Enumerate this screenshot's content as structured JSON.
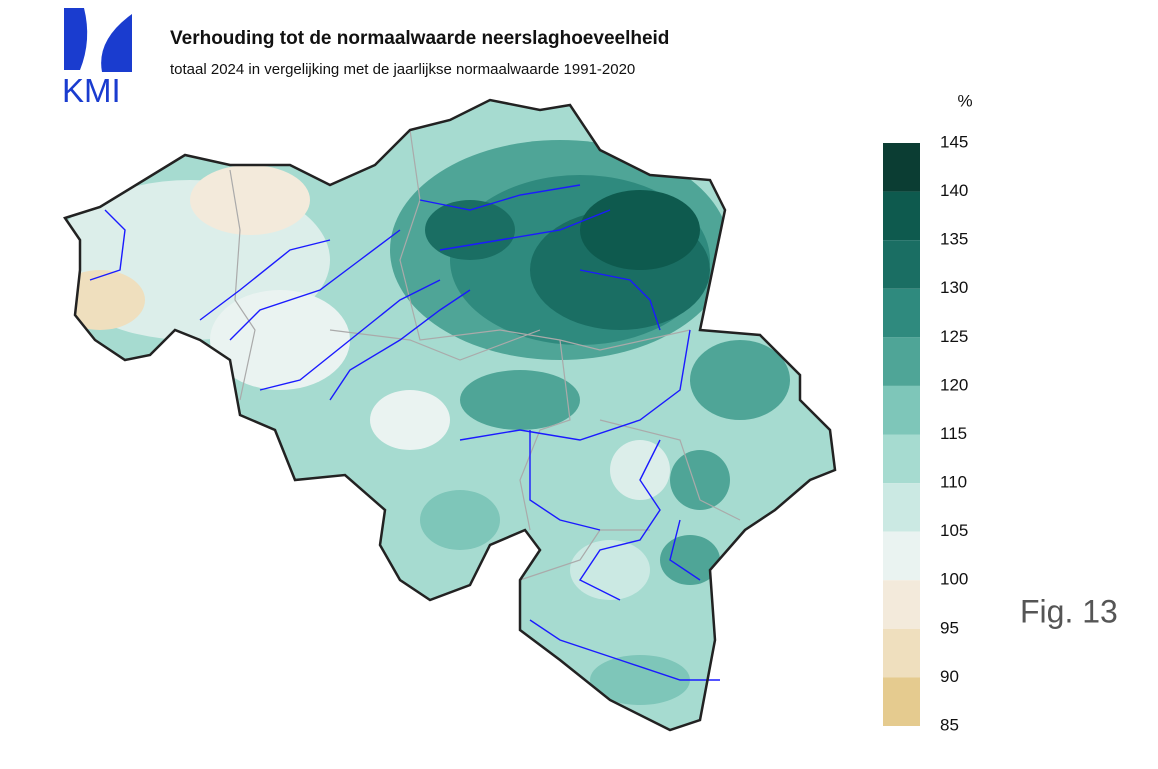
{
  "logo": "KMI",
  "title": "Verhouding tot de normaalwaarde neerslaghoeveelheid",
  "subtitle": "totaal 2024 in vergelijking met de jaarlijkse normaalwaarde 1991-2020",
  "legend": {
    "unit": "%",
    "ticks": [
      145,
      140,
      135,
      130,
      125,
      120,
      115,
      110,
      105,
      100,
      95,
      90,
      85
    ],
    "colors": [
      "#0b3d33",
      "#0e5a4e",
      "#1a6e63",
      "#2f8a7e",
      "#4fa597",
      "#7ec6b9",
      "#a6dbd0",
      "#cbe9e3",
      "#eaf3f1",
      "#f3eadb",
      "#efdfbe",
      "#e5cb8f"
    ]
  },
  "caption": "Fig. 13"
}
